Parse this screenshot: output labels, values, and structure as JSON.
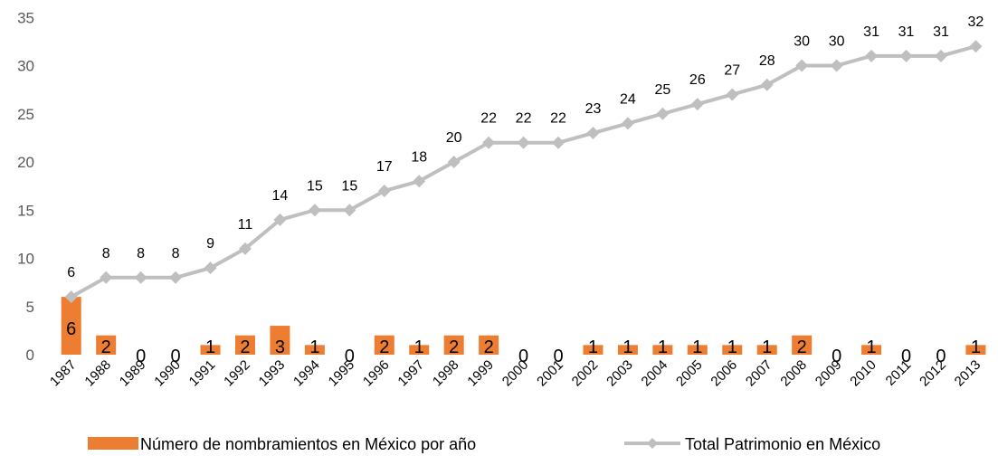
{
  "chart_data": {
    "type": "bar",
    "categories": [
      "1987",
      "1988",
      "1989",
      "1990",
      "1991",
      "1992",
      "1993",
      "1994",
      "1995",
      "1996",
      "1997",
      "1998",
      "1999",
      "2000",
      "2001",
      "2002",
      "2003",
      "2004",
      "2005",
      "2006",
      "2007",
      "2008",
      "2009",
      "2010",
      "2011",
      "2012",
      "2013"
    ],
    "series": [
      {
        "name": "Número de nombramientos en México por año",
        "type": "bar",
        "color": "#ED7D31",
        "values": [
          6,
          2,
          0,
          0,
          1,
          2,
          3,
          1,
          0,
          2,
          1,
          2,
          2,
          0,
          0,
          1,
          1,
          1,
          1,
          1,
          1,
          2,
          0,
          1,
          0,
          0,
          1
        ]
      },
      {
        "name": "Total Patrimonio en México",
        "type": "line",
        "color": "#BFBFBF",
        "marker": "diamond",
        "values": [
          6,
          8,
          8,
          8,
          9,
          11,
          14,
          15,
          15,
          17,
          18,
          20,
          22,
          22,
          22,
          23,
          24,
          25,
          26,
          27,
          28,
          30,
          30,
          31,
          31,
          31,
          32
        ]
      }
    ],
    "ylim": [
      0,
      35
    ],
    "yticks": [
      0,
      5,
      10,
      15,
      20,
      25,
      30,
      35
    ],
    "grid": false,
    "legend": "bottom"
  }
}
